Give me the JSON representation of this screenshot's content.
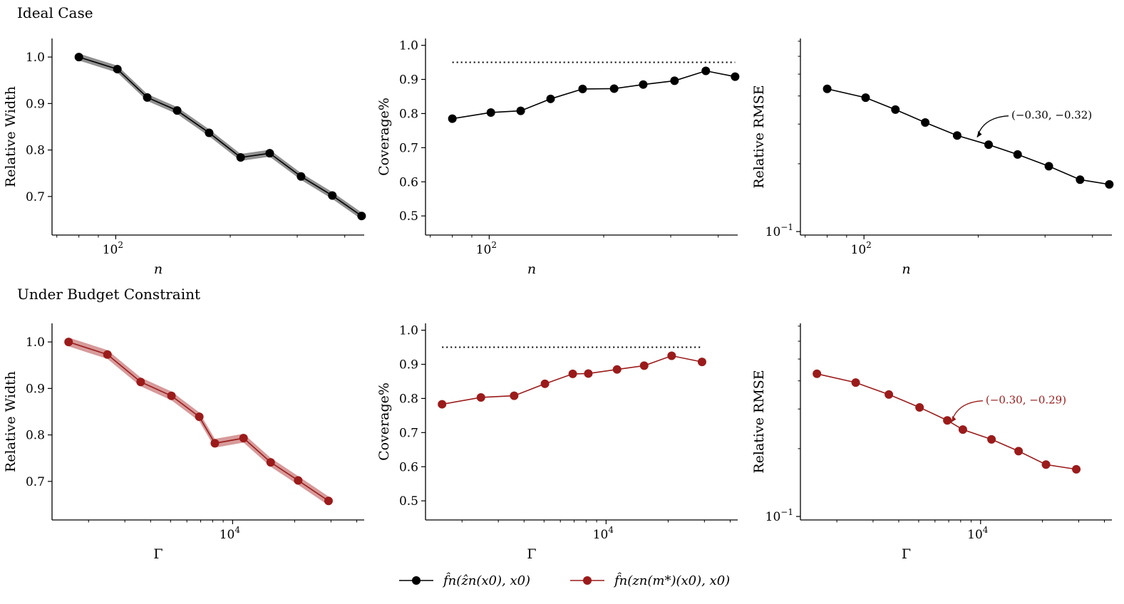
{
  "colors": {
    "black_series": "#000000",
    "red_series": "#9b1b1b",
    "black_band": "#6b6b6b",
    "red_band": "#c97878"
  },
  "row_titles": [
    "Ideal Case",
    "Under Budget Constraint"
  ],
  "legend": [
    {
      "label": "f̂n(ẑn(x0), x0)",
      "color": "#000000"
    },
    {
      "label": "f̂n(zn(m*)(x0), x0)",
      "color": "#9b1b1b"
    }
  ],
  "chart_data": [
    {
      "type": "line",
      "row": 0,
      "col": 0,
      "series_color": "#000000",
      "xlabel": "n",
      "ylabel": "Relative Width",
      "xscale": "log",
      "xlim": [
        68,
        450
      ],
      "xticks": [
        {
          "value": 100,
          "label": "10",
          "sup": "2"
        }
      ],
      "yscale": "linear",
      "ylim": [
        0.617,
        1.04
      ],
      "yticks": [
        {
          "value": 0.7,
          "label": "0.7"
        },
        {
          "value": 0.8,
          "label": "0.8"
        },
        {
          "value": 0.9,
          "label": "0.9"
        },
        {
          "value": 1.0,
          "label": "1.0"
        }
      ],
      "band": true,
      "band_halfwidth": 0.0075,
      "x": [
        80,
        101,
        121,
        145,
        176,
        213,
        254,
        307,
        371,
        443
      ],
      "y": [
        1.0,
        0.974,
        0.913,
        0.885,
        0.837,
        0.784,
        0.793,
        0.743,
        0.702,
        0.658
      ],
      "annotation": ""
    },
    {
      "type": "line",
      "row": 0,
      "col": 1,
      "series_color": "#000000",
      "xlabel": "n",
      "ylabel": "Coverage%",
      "xscale": "log",
      "xlim": [
        68,
        450
      ],
      "xticks": [
        {
          "value": 100,
          "label": "10",
          "sup": "2"
        }
      ],
      "yscale": "linear",
      "ylim": [
        0.444,
        1.02
      ],
      "yticks": [
        {
          "value": 0.5,
          "label": "0.5"
        },
        {
          "value": 0.6,
          "label": "0.6"
        },
        {
          "value": 0.7,
          "label": "0.7"
        },
        {
          "value": 0.8,
          "label": "0.8"
        },
        {
          "value": 0.9,
          "label": "0.9"
        },
        {
          "value": 1.0,
          "label": "1.0"
        }
      ],
      "band": false,
      "target_line": 0.95,
      "x": [
        80,
        101,
        121,
        145,
        176,
        213,
        254,
        307,
        371,
        443
      ],
      "y": [
        0.785,
        0.803,
        0.808,
        0.843,
        0.872,
        0.873,
        0.885,
        0.896,
        0.925,
        0.908
      ],
      "annotation": ""
    },
    {
      "type": "line",
      "row": 0,
      "col": 2,
      "series_color": "#000000",
      "xlabel": "n",
      "ylabel": "Relative RMSE",
      "xscale": "log",
      "xlim": [
        68,
        450
      ],
      "xticks": [
        {
          "value": 100,
          "label": "10",
          "sup": "2"
        }
      ],
      "yscale": "log",
      "ylim": [
        0.0965,
        0.72
      ],
      "yticks": [
        {
          "value": 0.1,
          "label": "10",
          "sup": "−1"
        }
      ],
      "band": false,
      "x": [
        80,
        101,
        121,
        145,
        176,
        213,
        254,
        307,
        371,
        443
      ],
      "y": [
        0.43,
        0.393,
        0.348,
        0.305,
        0.267,
        0.243,
        0.22,
        0.195,
        0.17,
        0.162
      ],
      "annotation": "(−0.30, −0.32)"
    },
    {
      "type": "line",
      "row": 1,
      "col": 0,
      "series_color": "#9b1b1b",
      "xlabel": "Γ",
      "ylabel": "Relative Width",
      "xscale": "log",
      "xlim": [
        1330,
        43500
      ],
      "xticks": [
        {
          "value": 10000,
          "label": "10",
          "sup": "4"
        }
      ],
      "yscale": "linear",
      "ylim": [
        0.617,
        1.04
      ],
      "yticks": [
        {
          "value": 0.7,
          "label": "0.7"
        },
        {
          "value": 0.8,
          "label": "0.8"
        },
        {
          "value": 0.9,
          "label": "0.9"
        },
        {
          "value": 1.0,
          "label": "1.0"
        }
      ],
      "band": true,
      "band_halfwidth": 0.0095,
      "x": [
        1600,
        2470,
        3580,
        5050,
        6890,
        8200,
        11300,
        15300,
        20800,
        29200
      ],
      "y": [
        1.0,
        0.973,
        0.914,
        0.884,
        0.839,
        0.782,
        0.793,
        0.741,
        0.702,
        0.658
      ],
      "annotation": ""
    },
    {
      "type": "line",
      "row": 1,
      "col": 1,
      "series_color": "#9b1b1b",
      "xlabel": "Γ",
      "ylabel": "Coverage%",
      "xscale": "log",
      "xlim": [
        1330,
        43500
      ],
      "xticks": [
        {
          "value": 10000,
          "label": "10",
          "sup": "4"
        }
      ],
      "yscale": "linear",
      "ylim": [
        0.444,
        1.02
      ],
      "yticks": [
        {
          "value": 0.5,
          "label": "0.5"
        },
        {
          "value": 0.6,
          "label": "0.6"
        },
        {
          "value": 0.7,
          "label": "0.7"
        },
        {
          "value": 0.8,
          "label": "0.8"
        },
        {
          "value": 0.9,
          "label": "0.9"
        },
        {
          "value": 1.0,
          "label": "1.0"
        }
      ],
      "band": false,
      "target_line": 0.95,
      "x": [
        1600,
        2470,
        3580,
        5050,
        6890,
        8200,
        11300,
        15300,
        20800,
        29200
      ],
      "y": [
        0.783,
        0.803,
        0.808,
        0.843,
        0.872,
        0.873,
        0.885,
        0.896,
        0.925,
        0.907
      ],
      "annotation": ""
    },
    {
      "type": "line",
      "row": 1,
      "col": 2,
      "series_color": "#9b1b1b",
      "xlabel": "Γ",
      "ylabel": "Relative RMSE",
      "xscale": "log",
      "xlim": [
        1330,
        43500
      ],
      "xticks": [
        {
          "value": 10000,
          "label": "10",
          "sup": "4"
        }
      ],
      "yscale": "log",
      "ylim": [
        0.0965,
        0.72
      ],
      "yticks": [
        {
          "value": 0.1,
          "label": "10",
          "sup": "−1"
        }
      ],
      "band": false,
      "x": [
        1600,
        2470,
        3580,
        5050,
        6890,
        8200,
        11300,
        15300,
        20800,
        29200
      ],
      "y": [
        0.43,
        0.393,
        0.348,
        0.305,
        0.267,
        0.243,
        0.22,
        0.195,
        0.17,
        0.162
      ],
      "annotation": "(−0.30, −0.29)"
    }
  ]
}
